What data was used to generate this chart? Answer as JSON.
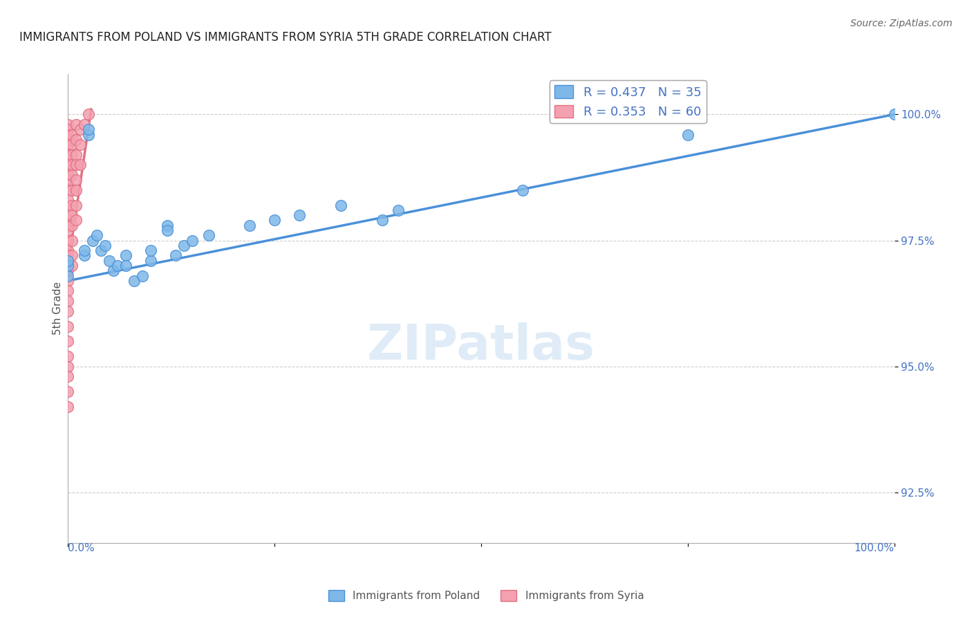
{
  "title": "IMMIGRANTS FROM POLAND VS IMMIGRANTS FROM SYRIA 5TH GRADE CORRELATION CHART",
  "source": "Source: ZipAtlas.com",
  "ylabel_text": "5th Grade",
  "y_ticks": [
    92.5,
    95.0,
    97.5,
    100.0
  ],
  "y_tick_labels": [
    "92.5%",
    "95.0%",
    "97.5%",
    "100.0%"
  ],
  "xlim": [
    0.0,
    1.0
  ],
  "ylim": [
    91.5,
    100.8
  ],
  "R_poland": 0.437,
  "N_poland": 35,
  "R_syria": 0.353,
  "N_syria": 60,
  "color_poland": "#7EB8E8",
  "color_syria": "#F4A0B0",
  "color_line_poland": "#4A90D9",
  "color_line_syria": "#E07080",
  "color_text_blue": "#4472C4",
  "poland_line_x": [
    0.0,
    1.0
  ],
  "poland_line_y": [
    96.7,
    100.0
  ],
  "syria_line_x": [
    0.0,
    0.028
  ],
  "syria_line_y": [
    97.0,
    100.1
  ],
  "poland_scatter": [
    [
      0.0,
      96.8
    ],
    [
      0.0,
      97.0
    ],
    [
      0.0,
      97.1
    ],
    [
      0.02,
      97.2
    ],
    [
      0.02,
      97.3
    ],
    [
      0.025,
      99.6
    ],
    [
      0.025,
      99.7
    ],
    [
      0.03,
      97.5
    ],
    [
      0.035,
      97.6
    ],
    [
      0.04,
      97.3
    ],
    [
      0.045,
      97.4
    ],
    [
      0.05,
      97.1
    ],
    [
      0.055,
      96.9
    ],
    [
      0.06,
      97.0
    ],
    [
      0.07,
      97.2
    ],
    [
      0.07,
      97.0
    ],
    [
      0.08,
      96.7
    ],
    [
      0.09,
      96.8
    ],
    [
      0.1,
      97.1
    ],
    [
      0.1,
      97.3
    ],
    [
      0.12,
      97.8
    ],
    [
      0.12,
      97.7
    ],
    [
      0.13,
      97.2
    ],
    [
      0.14,
      97.4
    ],
    [
      0.15,
      97.5
    ],
    [
      0.17,
      97.6
    ],
    [
      0.22,
      97.8
    ],
    [
      0.25,
      97.9
    ],
    [
      0.28,
      98.0
    ],
    [
      0.33,
      98.2
    ],
    [
      0.38,
      97.9
    ],
    [
      0.4,
      98.1
    ],
    [
      0.55,
      98.5
    ],
    [
      0.75,
      99.6
    ],
    [
      1.0,
      100.0
    ]
  ],
  "syria_scatter": [
    [
      0.0,
      99.8
    ],
    [
      0.0,
      99.7
    ],
    [
      0.0,
      99.6
    ],
    [
      0.0,
      99.5
    ],
    [
      0.0,
      99.4
    ],
    [
      0.0,
      99.3
    ],
    [
      0.0,
      99.2
    ],
    [
      0.0,
      99.1
    ],
    [
      0.0,
      99.0
    ],
    [
      0.0,
      98.9
    ],
    [
      0.0,
      98.8
    ],
    [
      0.0,
      98.7
    ],
    [
      0.0,
      98.6
    ],
    [
      0.0,
      98.5
    ],
    [
      0.0,
      98.3
    ],
    [
      0.0,
      98.1
    ],
    [
      0.0,
      97.9
    ],
    [
      0.0,
      97.8
    ],
    [
      0.0,
      97.7
    ],
    [
      0.0,
      97.5
    ],
    [
      0.0,
      97.3
    ],
    [
      0.0,
      97.2
    ],
    [
      0.0,
      97.0
    ],
    [
      0.0,
      96.9
    ],
    [
      0.0,
      96.7
    ],
    [
      0.0,
      96.5
    ],
    [
      0.0,
      96.3
    ],
    [
      0.0,
      96.1
    ],
    [
      0.0,
      95.8
    ],
    [
      0.0,
      95.5
    ],
    [
      0.0,
      95.2
    ],
    [
      0.0,
      95.0
    ],
    [
      0.0,
      94.8
    ],
    [
      0.0,
      94.5
    ],
    [
      0.0,
      94.2
    ],
    [
      0.005,
      99.6
    ],
    [
      0.005,
      99.4
    ],
    [
      0.005,
      99.2
    ],
    [
      0.005,
      99.0
    ],
    [
      0.005,
      98.8
    ],
    [
      0.005,
      98.5
    ],
    [
      0.005,
      98.2
    ],
    [
      0.005,
      98.0
    ],
    [
      0.005,
      97.8
    ],
    [
      0.005,
      97.5
    ],
    [
      0.005,
      97.2
    ],
    [
      0.005,
      97.0
    ],
    [
      0.01,
      99.8
    ],
    [
      0.01,
      99.5
    ],
    [
      0.01,
      99.2
    ],
    [
      0.01,
      99.0
    ],
    [
      0.01,
      98.7
    ],
    [
      0.01,
      98.5
    ],
    [
      0.01,
      98.2
    ],
    [
      0.01,
      97.9
    ],
    [
      0.015,
      99.7
    ],
    [
      0.015,
      99.4
    ],
    [
      0.015,
      99.0
    ],
    [
      0.02,
      99.8
    ],
    [
      0.025,
      100.0
    ]
  ]
}
